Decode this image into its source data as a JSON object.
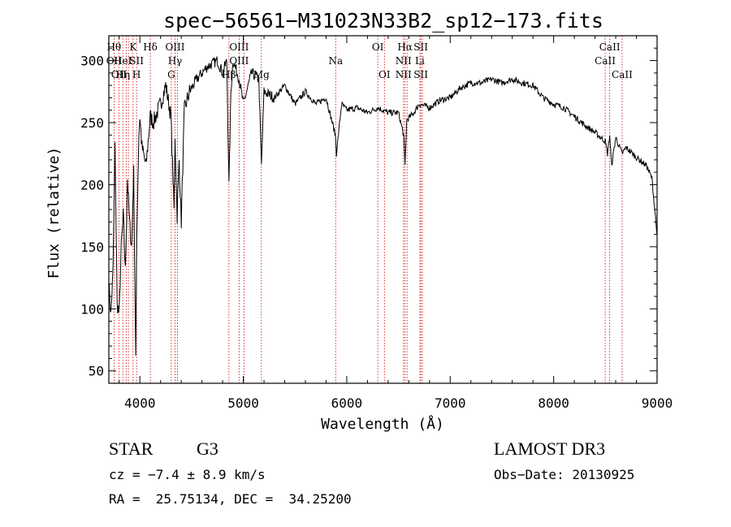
{
  "chart_data": {
    "type": "line",
    "title": "spec−56561−M31023N33B2_sp12−173.fits",
    "xlabel": "Wavelength (Å)",
    "ylabel": "Flux (relative)",
    "xlim": [
      3700,
      9000
    ],
    "ylim": [
      40,
      320
    ],
    "xticks": [
      4000,
      5000,
      6000,
      7000,
      8000,
      9000
    ],
    "yticks": [
      50,
      100,
      150,
      200,
      250,
      300
    ],
    "grid": false,
    "series": [
      {
        "name": "spectrum",
        "x": [
          3700,
          3720,
          3740,
          3760,
          3780,
          3800,
          3820,
          3840,
          3860,
          3880,
          3900,
          3920,
          3940,
          3960,
          3970,
          3990,
          4000,
          4020,
          4060,
          4090,
          4100,
          4130,
          4200,
          4250,
          4300,
          4330,
          4340,
          4360,
          4380,
          4400,
          4430,
          4480,
          4550,
          4650,
          4750,
          4800,
          4840,
          4861,
          4880,
          4900,
          4960,
          5000,
          5080,
          5150,
          5175,
          5200,
          5300,
          5400,
          5500,
          5600,
          5700,
          5800,
          5890,
          5900,
          5950,
          6000,
          6100,
          6200,
          6300,
          6400,
          6500,
          6550,
          6563,
          6580,
          6650,
          6700,
          6800,
          6900,
          7000,
          7100,
          7200,
          7300,
          7400,
          7500,
          7600,
          7700,
          7800,
          7900,
          8000,
          8100,
          8200,
          8300,
          8400,
          8498,
          8520,
          8542,
          8560,
          8600,
          8662,
          8700,
          8800,
          8900,
          8950,
          9000
        ],
        "y": [
          120,
          95,
          130,
          230,
          105,
          95,
          150,
          175,
          130,
          205,
          170,
          150,
          210,
          60,
          160,
          240,
          255,
          230,
          215,
          245,
          255,
          250,
          265,
          280,
          255,
          180,
          240,
          175,
          220,
          170,
          260,
          275,
          285,
          295,
          300,
          290,
          300,
          200,
          275,
          300,
          285,
          265,
          290,
          285,
          215,
          275,
          270,
          280,
          265,
          275,
          265,
          270,
          240,
          225,
          265,
          260,
          262,
          258,
          262,
          258,
          258,
          240,
          215,
          252,
          258,
          265,
          262,
          268,
          270,
          278,
          282,
          282,
          285,
          282,
          285,
          282,
          280,
          270,
          265,
          262,
          255,
          248,
          242,
          235,
          225,
          240,
          215,
          238,
          225,
          230,
          222,
          215,
          205,
          160
        ]
      }
    ],
    "lines": [
      {
        "x": 3750,
        "labels": [
          "Hθ",
          "OII",
          ""
        ]
      },
      {
        "x": 3798,
        "labels": [
          "",
          "",
          "OII"
        ]
      },
      {
        "x": 3835,
        "labels": [
          "",
          "HeI",
          "Hη"
        ]
      },
      {
        "x": 3869,
        "labels": [
          "",
          "",
          ""
        ]
      },
      {
        "x": 3889,
        "labels": [
          "",
          "",
          ""
        ]
      },
      {
        "x": 3934,
        "labels": [
          "K",
          "",
          ""
        ]
      },
      {
        "x": 3968,
        "labels": [
          "",
          "SII",
          "H"
        ]
      },
      {
        "x": 4101,
        "labels": [
          "Hδ",
          "",
          ""
        ]
      },
      {
        "x": 4304,
        "labels": [
          "",
          "",
          "G"
        ]
      },
      {
        "x": 4340,
        "labels": [
          "OIII",
          "Hγ",
          ""
        ]
      },
      {
        "x": 4363,
        "labels": [
          "",
          "",
          ""
        ]
      },
      {
        "x": 4861,
        "labels": [
          "",
          "",
          "Hβ"
        ]
      },
      {
        "x": 4959,
        "labels": [
          "OIII",
          "OIII",
          ""
        ]
      },
      {
        "x": 5007,
        "labels": [
          "",
          "",
          ""
        ]
      },
      {
        "x": 5175,
        "labels": [
          "",
          "",
          "Mg"
        ]
      },
      {
        "x": 5893,
        "labels": [
          "",
          "Na",
          ""
        ]
      },
      {
        "x": 6300,
        "labels": [
          "OI",
          "",
          ""
        ]
      },
      {
        "x": 6364,
        "labels": [
          "",
          "",
          "OI"
        ]
      },
      {
        "x": 6548,
        "labels": [
          "",
          "NII",
          "NII"
        ]
      },
      {
        "x": 6563,
        "labels": [
          "Hα",
          "",
          ""
        ]
      },
      {
        "x": 6583,
        "labels": [
          "",
          "",
          ""
        ]
      },
      {
        "x": 6707,
        "labels": [
          "",
          "Li",
          ""
        ]
      },
      {
        "x": 6716,
        "labels": [
          "SII",
          "",
          "SII"
        ]
      },
      {
        "x": 6731,
        "labels": [
          "",
          "",
          ""
        ]
      },
      {
        "x": 8498,
        "labels": [
          "",
          "CaII",
          ""
        ]
      },
      {
        "x": 8542,
        "labels": [
          "CaII",
          "",
          ""
        ]
      },
      {
        "x": 8662,
        "labels": [
          "",
          "",
          "CaII"
        ]
      }
    ]
  },
  "info": {
    "class": "STAR",
    "subclass": "G3",
    "survey": "LAMOST DR3",
    "cz": "cz = −7.4 ± 8.9 km/s",
    "obs_date": "Obs−Date: 20130925",
    "coords": "RA =  25.75134, DEC =  34.25200"
  },
  "colors": {
    "spectrum": "#000000",
    "line_marker": "#cc0000",
    "axis": "#000000"
  }
}
